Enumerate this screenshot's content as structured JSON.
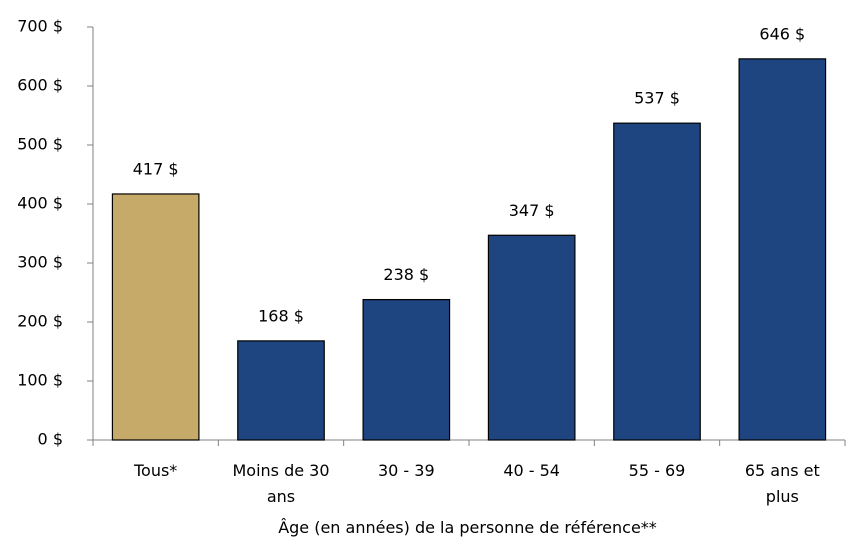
{
  "chart_data": {
    "type": "bar",
    "categories": [
      "Tous*",
      "Moins de 30 ans",
      "30 - 39",
      "40 - 54",
      "55 - 69",
      "65 ans et plus"
    ],
    "values": [
      417,
      168,
      238,
      347,
      537,
      646
    ],
    "value_labels": [
      "417 $",
      "168 $",
      "238 $",
      "347 $",
      "537 $",
      "646 $"
    ],
    "colors": [
      "#c6aa6a",
      "#1f4580",
      "#1f4580",
      "#1f4580",
      "#1f4580",
      "#1f4580"
    ],
    "x_label": "Âge (en années) de la personne de référence**",
    "ylim": [
      0,
      700
    ],
    "yticks": [
      {
        "value": 0,
        "label": "0 $"
      },
      {
        "value": 100,
        "label": "100 $"
      },
      {
        "value": 200,
        "label": "200 $"
      },
      {
        "value": 300,
        "label": "300 $"
      },
      {
        "value": 400,
        "label": "400 $"
      },
      {
        "value": 500,
        "label": "500 $"
      },
      {
        "value": 600,
        "label": "600 $"
      },
      {
        "value": 700,
        "label": "700 $"
      }
    ],
    "grid": false
  }
}
